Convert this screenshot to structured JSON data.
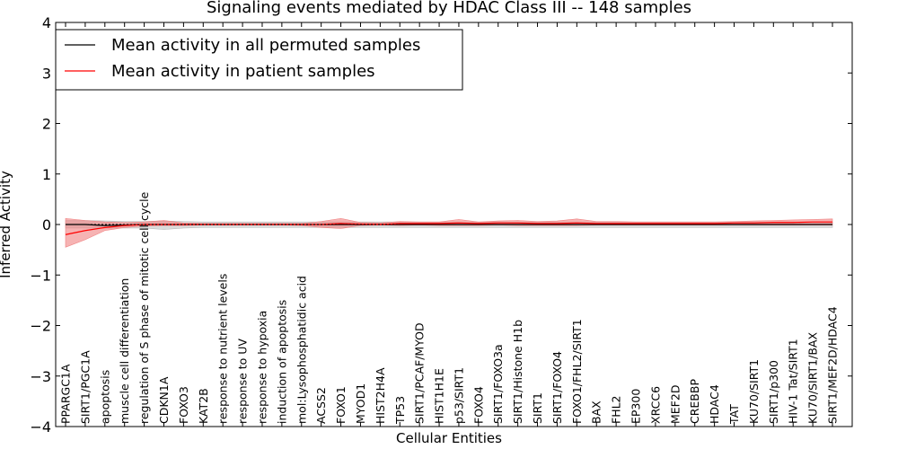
{
  "chart_data": {
    "type": "line",
    "title": "Signaling events mediated by HDAC Class III -- 148 samples",
    "xlabel": "Cellular Entities",
    "ylabel": "Inferred Activity",
    "ylim": [
      -4,
      4
    ],
    "yticks": [
      4,
      3,
      2,
      1,
      0,
      -1,
      -2,
      -3,
      -4
    ],
    "ytick_labels": [
      "4",
      "3",
      "2",
      "1",
      "0",
      "−1",
      "−2",
      "−3",
      "−4"
    ],
    "legend_position": "top-left",
    "categories": [
      "PPARGC1A",
      "SIRT1/PGC1A",
      "apoptosis",
      "muscle cell differentiation",
      "regulation of S phase of mitotic cell cycle",
      "CDKN1A",
      "FOXO3",
      "KAT2B",
      "response to nutrient levels",
      "response to UV",
      "response to hypoxia",
      "induction of apoptosis",
      "mol:Lysophosphatidic acid",
      "ACSS2",
      "FOXO1",
      "MYOD1",
      "HIST2H4A",
      "TP53",
      "SIRT1/PCAF/MYOD",
      "HIST1H1E",
      "p53/SIRT1",
      "FOXO4",
      "SIRT1/FOXO3a",
      "SIRT1/Histone H1b",
      "SIRT1",
      "SIRT1/FOXO4",
      "FOXO1/FHL2/SIRT1",
      "BAX",
      "FHL2",
      "EP300",
      "XRCC6",
      "MEF2D",
      "CREBBP",
      "HDAC4",
      "TAT",
      "KU70/SIRT1",
      "SIRT1/p300",
      "HIV-1 Tat/SIRT1",
      "KU70/SIRT1/BAX",
      "SIRT1/MEF2D/HDAC4"
    ],
    "series": [
      {
        "name": "Mean activity in all permuted samples",
        "color": "#000000",
        "values": [
          0.0,
          0.0,
          -0.02,
          -0.01,
          0.0,
          0.0,
          0.0,
          0.0,
          0.0,
          0.0,
          0.0,
          0.0,
          0.0,
          0.0,
          0.0,
          0.0,
          0.0,
          0.0,
          0.0,
          0.0,
          0.0,
          0.0,
          0.0,
          0.0,
          0.0,
          0.0,
          0.0,
          0.0,
          0.0,
          0.0,
          0.0,
          0.0,
          0.0,
          0.0,
          0.0,
          0.0,
          0.0,
          0.0,
          0.0,
          0.0
        ],
        "band_lower": [
          -0.07,
          -0.07,
          -0.07,
          -0.07,
          -0.07,
          -0.1,
          -0.07,
          -0.06,
          -0.06,
          -0.06,
          -0.06,
          -0.06,
          -0.06,
          -0.06,
          -0.06,
          -0.06,
          -0.06,
          -0.06,
          -0.06,
          -0.06,
          -0.06,
          -0.06,
          -0.06,
          -0.06,
          -0.06,
          -0.06,
          -0.06,
          -0.06,
          -0.06,
          -0.06,
          -0.06,
          -0.06,
          -0.06,
          -0.06,
          -0.06,
          -0.06,
          -0.06,
          -0.06,
          -0.06,
          -0.06
        ],
        "band_upper": [
          0.08,
          0.08,
          0.07,
          0.06,
          0.06,
          0.07,
          0.06,
          0.05,
          0.05,
          0.05,
          0.05,
          0.05,
          0.05,
          0.05,
          0.05,
          0.05,
          0.05,
          0.05,
          0.05,
          0.05,
          0.05,
          0.05,
          0.05,
          0.05,
          0.05,
          0.05,
          0.05,
          0.05,
          0.05,
          0.05,
          0.05,
          0.05,
          0.05,
          0.05,
          0.05,
          0.05,
          0.05,
          0.05,
          0.05,
          0.05
        ],
        "band_color": "#bbbbbb"
      },
      {
        "name": "Mean activity in patient samples",
        "color": "#ff0000",
        "values": [
          -0.2,
          -0.12,
          -0.06,
          -0.02,
          0.0,
          0.0,
          0.0,
          0.0,
          0.0,
          0.0,
          0.0,
          0.0,
          0.0,
          0.0,
          0.02,
          0.01,
          0.0,
          0.02,
          0.02,
          0.02,
          0.03,
          0.02,
          0.03,
          0.03,
          0.02,
          0.02,
          0.03,
          0.02,
          0.02,
          0.02,
          0.02,
          0.02,
          0.02,
          0.02,
          0.03,
          0.03,
          0.04,
          0.04,
          0.05,
          0.05
        ],
        "band_lower": [
          -0.45,
          -0.3,
          -0.12,
          -0.06,
          -0.03,
          -0.02,
          -0.02,
          -0.01,
          -0.01,
          -0.01,
          -0.01,
          -0.01,
          -0.02,
          -0.06,
          -0.08,
          -0.02,
          -0.01,
          -0.02,
          -0.01,
          -0.02,
          -0.02,
          -0.02,
          -0.01,
          -0.02,
          -0.02,
          -0.02,
          -0.02,
          -0.01,
          -0.01,
          -0.01,
          -0.01,
          -0.01,
          -0.01,
          -0.01,
          -0.01,
          -0.01,
          -0.01,
          -0.01,
          -0.01,
          -0.01
        ],
        "band_upper": [
          0.12,
          0.08,
          0.05,
          0.04,
          0.05,
          0.08,
          0.03,
          0.02,
          0.02,
          0.02,
          0.02,
          0.02,
          0.02,
          0.06,
          0.12,
          0.04,
          0.03,
          0.06,
          0.05,
          0.05,
          0.1,
          0.05,
          0.07,
          0.08,
          0.06,
          0.07,
          0.11,
          0.06,
          0.06,
          0.05,
          0.05,
          0.05,
          0.05,
          0.05,
          0.06,
          0.07,
          0.08,
          0.09,
          0.1,
          0.11
        ],
        "band_color": "#f08080"
      }
    ]
  }
}
